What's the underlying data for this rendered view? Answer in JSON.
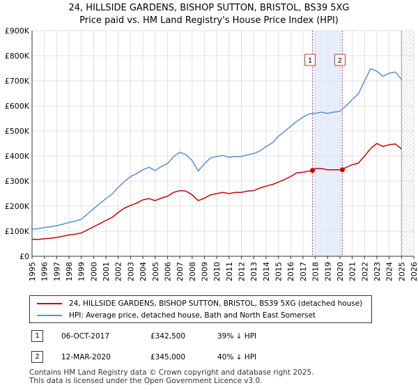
{
  "chart_data": {
    "type": "line",
    "title": "24, HILLSIDE GARDENS, BISHOP SUTTON, BRISTOL, BS39 5XG",
    "subtitle": "Price paid vs. HM Land Registry's House Price Index (HPI)",
    "xlabel": "",
    "ylabel": "",
    "xlim": [
      1995,
      2026
    ],
    "ylim": [
      0,
      900000
    ],
    "x_ticks": [
      "1995",
      "1996",
      "1997",
      "1998",
      "1999",
      "2000",
      "2001",
      "2002",
      "2003",
      "2004",
      "2005",
      "2006",
      "2007",
      "2008",
      "2009",
      "2010",
      "2011",
      "2012",
      "2013",
      "2014",
      "2015",
      "2016",
      "2017",
      "2018",
      "2019",
      "2020",
      "2021",
      "2022",
      "2023",
      "2024",
      "2025",
      "2026"
    ],
    "y_ticks": [
      {
        "value": 0,
        "label": "£0"
      },
      {
        "value": 100000,
        "label": "£100K"
      },
      {
        "value": 200000,
        "label": "£200K"
      },
      {
        "value": 300000,
        "label": "£300K"
      },
      {
        "value": 400000,
        "label": "£400K"
      },
      {
        "value": 500000,
        "label": "£500K"
      },
      {
        "value": 600000,
        "label": "£600K"
      },
      {
        "value": 700000,
        "label": "£700K"
      },
      {
        "value": 800000,
        "label": "£800K"
      },
      {
        "value": 900000,
        "label": "£900K"
      }
    ],
    "grid": true,
    "highlight_band": {
      "from": 2017.77,
      "to": 2020.2
    },
    "future_hatch_from": 2025.0,
    "series": [
      {
        "name": "24, HILLSIDE GARDENS, BISHOP SUTTON, BRISTOL, BS39 5XG (detached house)",
        "color": "#cc0000",
        "x": [
          1995.0,
          1995.5,
          1996.0,
          1996.5,
          1997.0,
          1997.5,
          1998.0,
          1998.5,
          1999.0,
          1999.5,
          2000.0,
          2000.5,
          2001.0,
          2001.5,
          2002.0,
          2002.5,
          2003.0,
          2003.5,
          2004.0,
          2004.5,
          2005.0,
          2005.5,
          2006.0,
          2006.5,
          2007.0,
          2007.5,
          2008.0,
          2008.5,
          2009.0,
          2009.5,
          2010.0,
          2010.5,
          2011.0,
          2011.5,
          2012.0,
          2012.5,
          2013.0,
          2013.5,
          2014.0,
          2014.5,
          2015.0,
          2015.5,
          2016.0,
          2016.5,
          2017.0,
          2017.77,
          2018.0,
          2018.5,
          2019.0,
          2019.5,
          2020.2,
          2020.5,
          2021.0,
          2021.5,
          2022.0,
          2022.5,
          2023.0,
          2023.5,
          2024.0,
          2024.5,
          2025.0
        ],
        "y": [
          68000,
          67000,
          70000,
          72000,
          75000,
          80000,
          85000,
          88000,
          93000,
          105000,
          118000,
          130000,
          143000,
          155000,
          175000,
          192000,
          203000,
          212000,
          225000,
          230000,
          222000,
          232000,
          240000,
          255000,
          262000,
          260000,
          245000,
          222000,
          232000,
          245000,
          250000,
          255000,
          250000,
          255000,
          255000,
          260000,
          262000,
          272000,
          280000,
          286000,
          296000,
          306000,
          318000,
          333000,
          335000,
          342500,
          350000,
          350000,
          345000,
          345000,
          345000,
          355000,
          365000,
          372000,
          400000,
          430000,
          450000,
          438000,
          445000,
          448000,
          428000
        ]
      },
      {
        "name": "HPI: Average price, detached house, Bath and North East Somerset",
        "color": "#5b8fd1",
        "x": [
          1995.0,
          1995.5,
          1996.0,
          1996.5,
          1997.0,
          1997.5,
          1998.0,
          1998.5,
          1999.0,
          1999.5,
          2000.0,
          2000.5,
          2001.0,
          2001.5,
          2002.0,
          2002.5,
          2003.0,
          2003.5,
          2004.0,
          2004.5,
          2005.0,
          2005.5,
          2006.0,
          2006.5,
          2007.0,
          2007.5,
          2008.0,
          2008.5,
          2009.0,
          2009.5,
          2010.0,
          2010.5,
          2011.0,
          2011.5,
          2012.0,
          2012.5,
          2013.0,
          2013.5,
          2014.0,
          2014.5,
          2015.0,
          2015.5,
          2016.0,
          2016.5,
          2017.0,
          2017.5,
          2018.0,
          2018.5,
          2019.0,
          2019.5,
          2020.0,
          2020.5,
          2021.0,
          2021.5,
          2022.0,
          2022.5,
          2023.0,
          2023.5,
          2024.0,
          2024.5,
          2025.0
        ],
        "y": [
          108000,
          110000,
          115000,
          118000,
          122000,
          128000,
          135000,
          140000,
          148000,
          168000,
          190000,
          210000,
          230000,
          248000,
          275000,
          298000,
          318000,
          330000,
          345000,
          355000,
          342000,
          358000,
          370000,
          398000,
          415000,
          405000,
          382000,
          340000,
          370000,
          392000,
          398000,
          402000,
          395000,
          398000,
          398000,
          405000,
          410000,
          420000,
          438000,
          452000,
          478000,
          498000,
          518000,
          538000,
          555000,
          568000,
          570000,
          575000,
          570000,
          575000,
          578000,
          600000,
          625000,
          648000,
          700000,
          748000,
          738000,
          718000,
          730000,
          735000,
          705000
        ]
      }
    ],
    "annotations": [
      {
        "label": "1",
        "x": 2017.77,
        "y": 342500
      },
      {
        "label": "2",
        "x": 2020.2,
        "y": 345000
      }
    ]
  },
  "legend": {
    "property_label": "24, HILLSIDE GARDENS, BISHOP SUTTON, BRISTOL, BS39 5XG (detached house)",
    "hpi_label": "HPI: Average price, detached house, Bath and North East Somerset"
  },
  "transactions": [
    {
      "num": "1",
      "date": "06-OCT-2017",
      "price": "£342,500",
      "hpi": "39% ↓ HPI"
    },
    {
      "num": "2",
      "date": "12-MAR-2020",
      "price": "£345,000",
      "hpi": "40% ↓ HPI"
    }
  ],
  "footer": {
    "line1": "Contains HM Land Registry data © Crown copyright and database right 2025.",
    "line2": "This data is licensed under the Open Government Licence v3.0."
  }
}
